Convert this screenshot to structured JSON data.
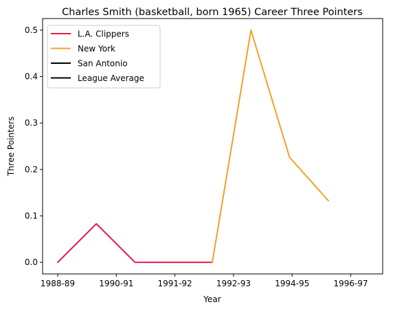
{
  "chart_data": {
    "type": "line",
    "title": "Charles Smith (basketball, born 1965) Career Three Pointers",
    "xlabel": "Year",
    "ylabel": "Three Pointers",
    "x_tick_labels": [
      "1988-89",
      "1990-91",
      "1991-92",
      "1992-93",
      "1994-95",
      "1996-97"
    ],
    "y_ticks": [
      0.0,
      0.1,
      0.2,
      0.3,
      0.4,
      0.5
    ],
    "y_tick_labels": [
      "0.0",
      "0.1",
      "0.2",
      "0.3",
      "0.4",
      "0.5"
    ],
    "ylim": [
      -0.025,
      0.525
    ],
    "x": [
      "1988-89",
      "1989-90",
      "1990-91",
      "1991-92",
      "1992-93",
      "1993-94",
      "1994-95",
      "1995-96"
    ],
    "series": [
      {
        "name": "L.A. Clippers",
        "color": "#e8194a",
        "points": [
          {
            "x": "1988-89",
            "y": 0.0
          },
          {
            "x": "1989-90",
            "y": 0.083
          },
          {
            "x": "1990-91",
            "y": 0.0
          },
          {
            "x": "1991-92",
            "y": 0.0
          },
          {
            "x": "1992-93",
            "y": 0.0
          }
        ]
      },
      {
        "name": "New York",
        "color": "#f5a020",
        "points": [
          {
            "x": "1992-93",
            "y": 0.0
          },
          {
            "x": "1993-94",
            "y": 0.5
          },
          {
            "x": "1994-95",
            "y": 0.226
          },
          {
            "x": "1995-96",
            "y": 0.133
          }
        ]
      },
      {
        "name": "San Antonio",
        "color": "#000000",
        "points": []
      },
      {
        "name": "League Average",
        "color": "#000000",
        "points": []
      }
    ],
    "grid": false,
    "legend_position": "upper-left"
  }
}
